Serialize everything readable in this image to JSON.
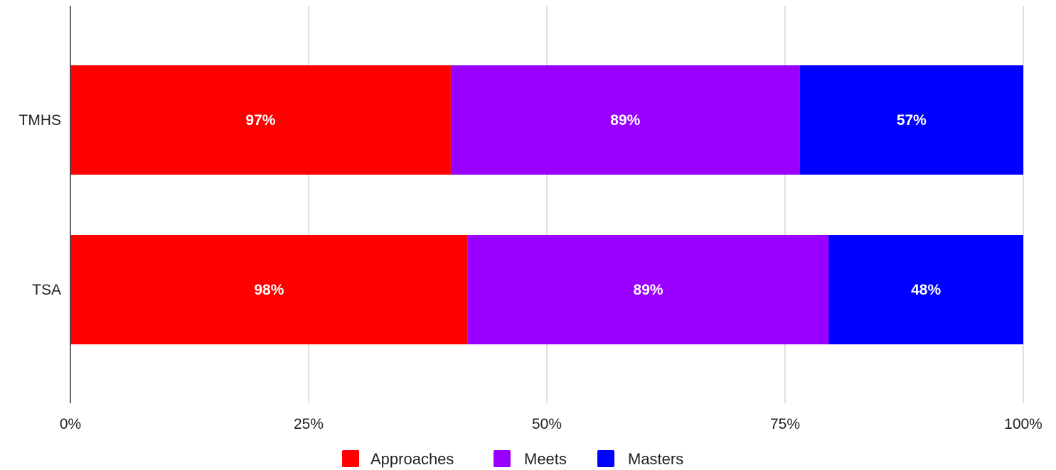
{
  "chart_data": {
    "type": "bar",
    "orientation": "horizontal",
    "stacking": "percent",
    "categories": [
      "TMHS",
      "TSA"
    ],
    "series": [
      {
        "name": "Approaches",
        "values": [
          97,
          98
        ],
        "labels": [
          "97%",
          "98%"
        ],
        "color": "#ff0000"
      },
      {
        "name": "Meets",
        "values": [
          89,
          89
        ],
        "labels": [
          "89%",
          "89%"
        ],
        "color": "#9900ff"
      },
      {
        "name": "Masters",
        "values": [
          57,
          48
        ],
        "labels": [
          "57%",
          "48%"
        ],
        "color": "#0000ff"
      }
    ],
    "x_ticks": [
      "0%",
      "25%",
      "50%",
      "75%",
      "100%"
    ],
    "xlim": [
      0,
      100
    ],
    "grid": true,
    "legend_position": "bottom",
    "title": "",
    "xlabel": "",
    "ylabel": ""
  }
}
